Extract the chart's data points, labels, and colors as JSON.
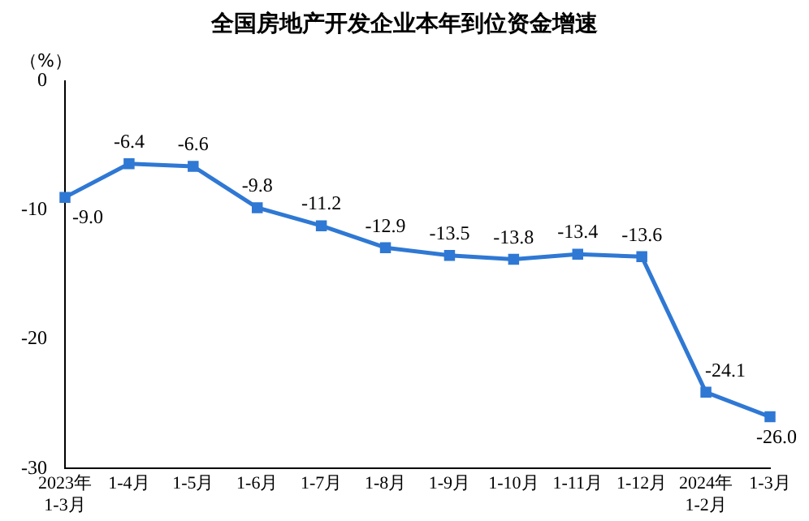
{
  "chart_data": {
    "type": "line",
    "title": "全国房地产开发企业本年到位资金增速",
    "ylabel": "（%）",
    "categories": [
      "2023年\n1-3月",
      "1-4月",
      "1-5月",
      "1-6月",
      "1-7月",
      "1-8月",
      "1-9月",
      "1-10月",
      "1-11月",
      "1-12月",
      "2024年\n1-2月",
      "1-3月"
    ],
    "series": [
      {
        "color": "#2f78d4",
        "values": [
          -9.0,
          -6.4,
          -6.6,
          -9.8,
          -11.2,
          -12.9,
          -13.5,
          -13.8,
          -13.4,
          -13.6,
          -24.1,
          -26.0
        ],
        "value_labels": [
          "-9.0",
          "-6.4",
          "-6.6",
          "-9.8",
          "-11.2",
          "-12.9",
          "-13.5",
          "-13.8",
          "-13.4",
          "-13.6",
          "-24.1",
          "-26.0"
        ]
      }
    ],
    "ylim": [
      -30,
      0
    ],
    "yticks": [
      0,
      -10,
      -20,
      -30
    ],
    "grid": false,
    "legend": false,
    "marker": "square",
    "line_style": "solid"
  }
}
